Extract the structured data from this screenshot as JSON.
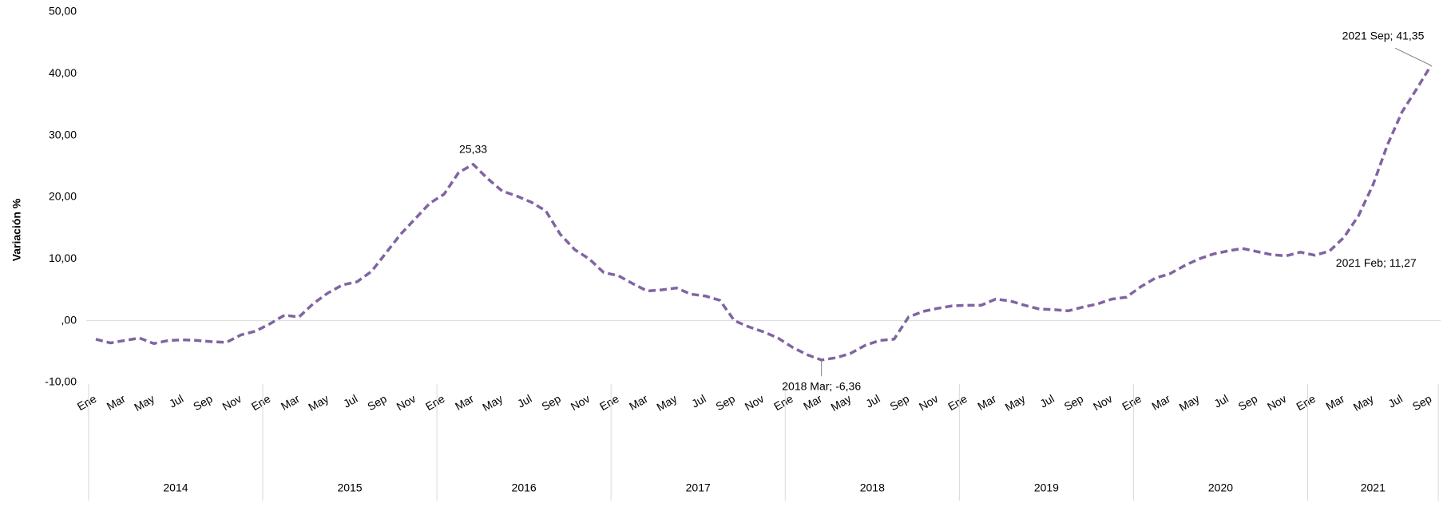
{
  "chart_data": {
    "type": "line",
    "ylabel": "Variación %",
    "categories": [
      "Ene",
      null,
      "Mar",
      null,
      "May",
      null,
      "Jul",
      null,
      "Sep",
      null,
      "Nov",
      null,
      "Ene",
      null,
      "Mar",
      null,
      "May",
      null,
      "Jul",
      null,
      "Sep",
      null,
      "Nov",
      null,
      "Ene",
      null,
      "Mar",
      null,
      "May",
      null,
      "Jul",
      null,
      "Sep",
      null,
      "Nov",
      null,
      "Ene",
      null,
      "Mar",
      null,
      "May",
      null,
      "Jul",
      null,
      "Sep",
      null,
      "Nov",
      null,
      "Ene",
      null,
      "Mar",
      null,
      "May",
      null,
      "Jul",
      null,
      "Sep",
      null,
      "Nov",
      null,
      "Ene",
      null,
      "Mar",
      null,
      "May",
      null,
      "Jul",
      null,
      "Sep",
      null,
      "Nov",
      null,
      "Ene",
      null,
      "Mar",
      null,
      "May",
      null,
      "Jul",
      null,
      "Sep",
      null,
      "Nov",
      null,
      "Ene",
      null,
      "Mar",
      null,
      "May",
      null,
      "Jul",
      null,
      "Sep"
    ],
    "years": [
      "2014",
      "2015",
      "2016",
      "2017",
      "2018",
      "2019",
      "2020",
      "2021"
    ],
    "series": [
      {
        "name": "Variación %",
        "color": "#8064a2",
        "values": [
          -3.0,
          -3.6,
          -3.2,
          -2.8,
          -3.7,
          -3.2,
          -3.1,
          -3.2,
          -3.4,
          -3.5,
          -2.3,
          -1.7,
          -0.5,
          0.9,
          0.6,
          2.8,
          4.5,
          5.8,
          6.3,
          8.0,
          11.0,
          14.0,
          16.5,
          19.0,
          20.5,
          24.0,
          25.33,
          23.0,
          21.0,
          20.2,
          19.2,
          17.8,
          14.0,
          11.5,
          10.0,
          7.8,
          7.3,
          6.0,
          4.8,
          5.0,
          5.3,
          4.3,
          4.0,
          3.3,
          0.0,
          -1.0,
          -1.8,
          -2.8,
          -4.3,
          -5.5,
          -6.36,
          -6.0,
          -5.3,
          -4.0,
          -3.2,
          -3.0,
          0.6,
          1.5,
          2.0,
          2.4,
          2.5,
          2.5,
          3.5,
          3.2,
          2.5,
          1.9,
          1.8,
          1.6,
          2.2,
          2.7,
          3.5,
          3.8,
          5.5,
          6.9,
          7.6,
          8.9,
          10.0,
          10.8,
          11.3,
          11.7,
          11.2,
          10.7,
          10.5,
          11.1,
          10.6,
          11.27,
          13.5,
          17.0,
          22.0,
          28.5,
          33.8,
          37.5,
          41.35
        ],
        "value_labels": [
          null,
          null,
          null,
          null,
          null,
          null,
          null,
          null,
          null,
          null,
          null,
          null,
          null,
          null,
          null,
          null,
          null,
          null,
          null,
          null,
          null,
          null,
          null,
          null,
          null,
          null,
          "25,33",
          null,
          null,
          null,
          null,
          null,
          null,
          null,
          null,
          null,
          null,
          null,
          null,
          null,
          null,
          null,
          null,
          null,
          null,
          null,
          null,
          null,
          null,
          null,
          "2018 Mar; -6,36",
          null,
          null,
          null,
          null,
          null,
          null,
          null,
          null,
          null,
          null,
          null,
          null,
          null,
          null,
          null,
          null,
          null,
          null,
          null,
          null,
          null,
          null,
          null,
          null,
          null,
          null,
          null,
          null,
          null,
          null,
          null,
          null,
          null,
          null,
          "2021 Feb; 11,27",
          null,
          null,
          null,
          null,
          null,
          null,
          "2021 Sep; 41,35"
        ]
      }
    ],
    "ylim": [
      -10,
      50
    ],
    "yticks": [
      {
        "value": -10,
        "label": "-10,00"
      },
      {
        "value": 0,
        "label": ",00"
      },
      {
        "value": 10,
        "label": "10,00"
      },
      {
        "value": 20,
        "label": "20,00"
      },
      {
        "value": 30,
        "label": "30,00"
      },
      {
        "value": 40,
        "label": "40,00"
      },
      {
        "value": 50,
        "label": "50,00"
      }
    ],
    "grid": false
  }
}
